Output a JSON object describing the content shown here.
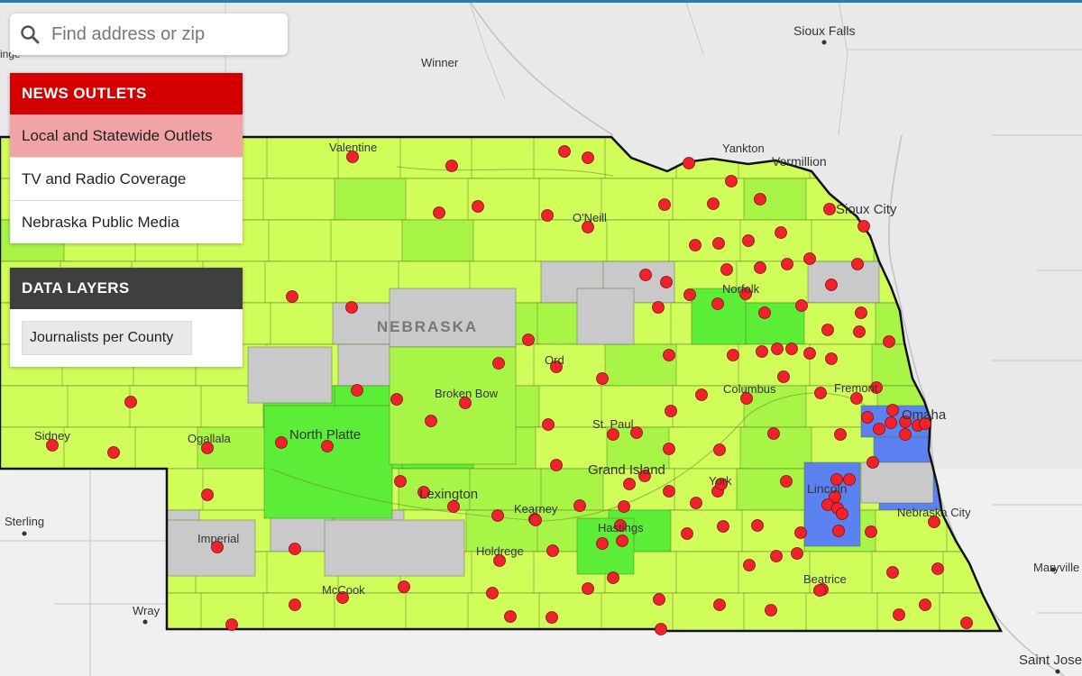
{
  "search": {
    "placeholder": "Find address or zip",
    "icon": "search-icon"
  },
  "news_outlets": {
    "title": "NEWS OUTLETS",
    "items": [
      {
        "label": "Local and Statewide Outlets",
        "active": true
      },
      {
        "label": "TV and Radio Coverage",
        "active": false
      },
      {
        "label": "Nebraska Public Media",
        "active": false
      }
    ]
  },
  "data_layers": {
    "title": "DATA LAYERS",
    "layer": "Journalists per County"
  },
  "map": {
    "state_label": "NEBRASKA",
    "places": {
      "sioux_falls": "Sioux Falls",
      "winner": "Winner",
      "yankton": "Yankton",
      "vermillion": "Vermillion",
      "sioux_city": "Sioux City",
      "valentine": "Valentine",
      "oneill": "O'Neill",
      "norfolk": "Norfolk",
      "ord": "Ord",
      "broken_bow": "Broken Bow",
      "columbus": "Columbus",
      "fremont": "Fremont",
      "omaha": "Omaha",
      "sidney": "Sidney",
      "ogallala": "Ogallala",
      "north_platte": "North Platte",
      "st_paul": "St. Paul",
      "grand_island": "Grand Island",
      "lexington": "Lexington",
      "kearney": "Kearney",
      "york": "York",
      "lincoln": "Lincoln",
      "sterling": "Sterling",
      "imperial": "Imperial",
      "hastings": "Hastings",
      "holdrege": "Holdrege",
      "nebraska_city": "Nebraska City",
      "mccook": "McCook",
      "beatrice": "Beatrice",
      "wray": "Wray",
      "maryville": "Maryville",
      "saint_joseph": "Saint Jose",
      "edge_label": "inge"
    },
    "colors": {
      "low": "#d1fd5b",
      "mid": "#a8f547",
      "high": "#5cee36",
      "top": "#5b82f0",
      "none": "#c9c9c9",
      "outlet": "#f0222a",
      "border": "#111111"
    },
    "county_levels": [
      [
        "low",
        "low",
        "mid",
        "low",
        "low",
        "low",
        "low",
        "low",
        "low",
        "low",
        "low",
        "low",
        "low",
        "low",
        "low"
      ],
      [
        "low",
        "low",
        "low",
        "low",
        "low",
        "mid",
        "low",
        "low",
        "low",
        "low",
        "low",
        "mid",
        "low",
        "low",
        "low"
      ],
      [
        "mid",
        "low",
        "low",
        "low",
        "low",
        "low",
        "mid",
        "low",
        "low",
        "low",
        "low",
        "low",
        "low",
        "mid",
        "low"
      ],
      [
        "low",
        "low",
        "low",
        "low",
        "low",
        "low",
        "low",
        "low",
        "none",
        "none",
        "low",
        "low",
        "none",
        "low",
        "low"
      ],
      [
        "low",
        "low",
        "low",
        "low",
        "low",
        "none",
        "none",
        "mid",
        "mid",
        "low",
        "low",
        "high",
        "low",
        "mid",
        "low"
      ],
      [
        "low",
        "low",
        "low",
        "low",
        "low",
        "none",
        "low",
        "low",
        "low",
        "mid",
        "low",
        "low",
        "low",
        "mid",
        "low"
      ],
      [
        "low",
        "low",
        "low",
        "low",
        "high",
        "high",
        "high",
        "mid",
        "low",
        "low",
        "low",
        "mid",
        "low",
        "mid",
        "top"
      ],
      [
        "low",
        "low",
        "low",
        "mid",
        "low",
        "high",
        "high",
        "mid",
        "low",
        "mid",
        "low",
        "mid",
        "low",
        "top",
        "none"
      ],
      [
        "low",
        "low",
        "low",
        "low",
        "low",
        "low",
        "mid",
        "mid",
        "mid",
        "low",
        "low",
        "mid",
        "low",
        "top",
        "low"
      ],
      [
        "low",
        "low",
        "none",
        "low",
        "none",
        "none",
        "low",
        "mid",
        "mid",
        "high",
        "low",
        "low",
        "mid",
        "low",
        "low"
      ],
      [
        "low",
        "low",
        "low",
        "low",
        "low",
        "low",
        "low",
        "low",
        "low",
        "low",
        "low",
        "low",
        "low",
        "low",
        "low"
      ],
      [
        "low",
        "low",
        "low",
        "low",
        "low",
        "low",
        "low",
        "low",
        "low",
        "low",
        "low",
        "low",
        "low",
        "low",
        "low"
      ]
    ]
  }
}
